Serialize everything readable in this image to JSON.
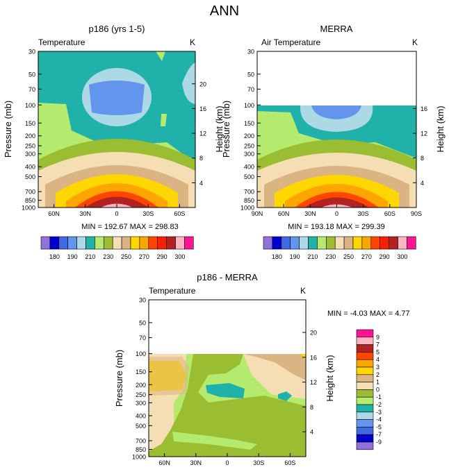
{
  "figure": {
    "title": "ANN"
  },
  "colors": {
    "abs": [
      "#9370db",
      "#0000cd",
      "#4169e1",
      "#6495ed",
      "#add8e6",
      "#20b2aa",
      "#b4eb6e",
      "#9abd32",
      "#f5deb3",
      "#dab482",
      "#ffd700",
      "#ffa500",
      "#ff4500",
      "#ff1e00",
      "#b22222",
      "#ffb6c1",
      "#ff1493"
    ],
    "diff": [
      "#9370db",
      "#0000cd",
      "#4169e1",
      "#6495ed",
      "#add8e6",
      "#20b2aa",
      "#b4eb6e",
      "#9abd32",
      "#f5deb3",
      "#dab482",
      "#ffd700",
      "#ffa500",
      "#ff4500",
      "#b22222",
      "#ffb6c1",
      "#ff1493"
    ]
  },
  "chart_data": [
    {
      "type": "heatmap",
      "title": "p186 (yrs 1-5)",
      "subtitle_left": "Temperature",
      "subtitle_right": "K",
      "ylabel": "Pressure (mb)",
      "ylabel_right": "Height (km)",
      "pressure_ticks": [
        "30",
        "50",
        "70",
        "100",
        "150",
        "200",
        "250",
        "300",
        "400",
        "500",
        "700",
        "850",
        "1000"
      ],
      "height_ticks": [
        "20",
        "16",
        "12",
        "8",
        "4"
      ],
      "lat_ticks": [
        "60N",
        "30N",
        "0",
        "30S",
        "60S"
      ],
      "xlim": [
        75,
        -75
      ],
      "min_max_text": "MIN = 192.67   MAX = 298.83",
      "levels": [
        "180",
        "190",
        "200",
        "210",
        "220",
        "230",
        "240",
        "250",
        "260",
        "270",
        "280",
        "290",
        "300"
      ],
      "label_bar_ticks": [
        "180",
        "190",
        "210",
        "230",
        "250",
        "270",
        "290",
        "300"
      ]
    },
    {
      "type": "heatmap",
      "title": "MERRA",
      "subtitle_left": "Air Temperature",
      "subtitle_right": "K",
      "ylabel": "Pressure (mb)",
      "ylabel_right": "Height (km)",
      "pressure_ticks": [
        "30",
        "50",
        "70",
        "100",
        "150",
        "200",
        "250",
        "300",
        "400",
        "500",
        "700",
        "850",
        "1000"
      ],
      "height_ticks": [
        "16",
        "12",
        "8",
        "4"
      ],
      "lat_ticks": [
        "90N",
        "60N",
        "30N",
        "0",
        "30S",
        "60S",
        "90S"
      ],
      "xlim": [
        90,
        -90
      ],
      "data_top_pressure": 100,
      "min_max_text": "MIN = 193.18   MAX = 299.39",
      "label_bar_ticks": [
        "180",
        "190",
        "210",
        "230",
        "250",
        "270",
        "290",
        "300"
      ]
    },
    {
      "type": "heatmap",
      "title": "p186 - MERRA",
      "subtitle_left": "Temperature",
      "subtitle_right": "K",
      "ylabel": "Pressure (mb)",
      "ylabel_right": "Height (km)",
      "pressure_ticks": [
        "30",
        "50",
        "70",
        "100",
        "150",
        "200",
        "250",
        "300",
        "400",
        "500",
        "700",
        "850",
        "1000"
      ],
      "height_ticks": [
        "20",
        "16",
        "12",
        "8",
        "4"
      ],
      "lat_ticks": [
        "60N",
        "30N",
        "0",
        "30S",
        "60S"
      ],
      "xlim": [
        75,
        -75
      ],
      "data_top_pressure": 100,
      "min_max_text": "MIN =  -4.03   MAX =   4.77",
      "label_bar_ticks": [
        "9",
        "7",
        "5",
        "4",
        "3",
        "2",
        "1",
        "0",
        "-1",
        "-2",
        "-3",
        "-4",
        "-5",
        "-7",
        "-9"
      ]
    }
  ]
}
